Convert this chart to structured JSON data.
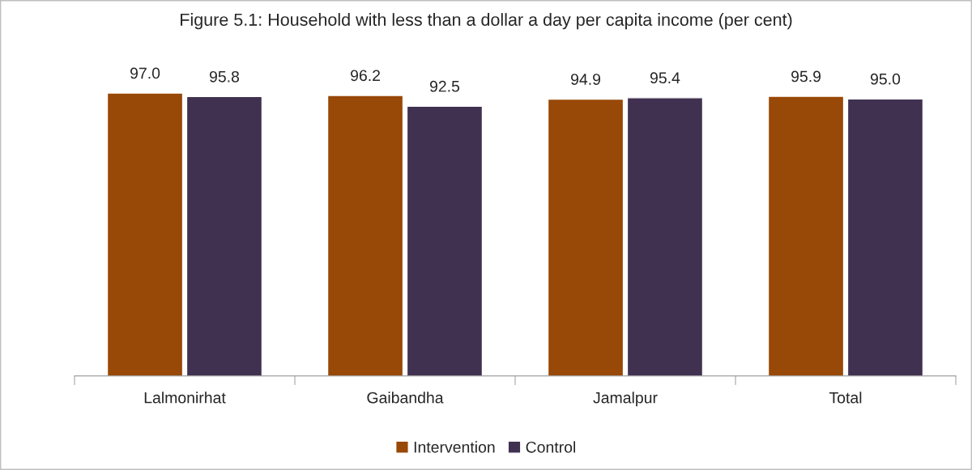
{
  "chart_data": {
    "type": "bar",
    "title": "Figure 5.1: Household with less than a dollar a day per capita income (per cent)",
    "categories": [
      "Lalmonirhat",
      "Gaibandha",
      "Jamalpur",
      "Total"
    ],
    "series": [
      {
        "name": "Intervention",
        "color": "#984807",
        "values": [
          97.0,
          96.2,
          94.9,
          95.9
        ],
        "value_labels": [
          "97.0",
          "96.2",
          "94.9",
          "95.9"
        ]
      },
      {
        "name": "Control",
        "color": "#403151",
        "values": [
          95.8,
          92.5,
          95.4,
          95.0
        ],
        "value_labels": [
          "95.8",
          "92.5",
          "95.4",
          "95.0"
        ]
      }
    ],
    "legend": "bottom",
    "grid": false
  }
}
